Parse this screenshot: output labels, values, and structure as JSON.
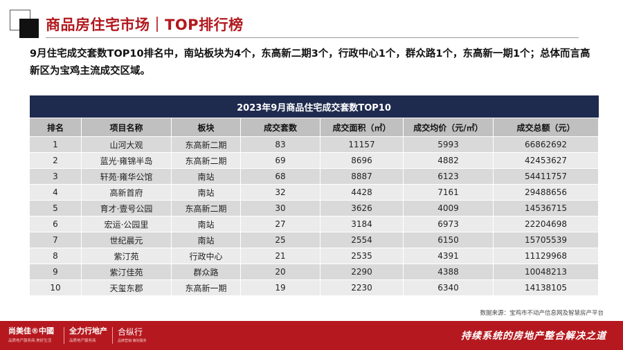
{
  "title": "商品房住宅市场｜TOP排行榜",
  "summary": "9月住宅成交套数TOP10排名中，南站板块为4个，东高新二期3个，行政中心1个，群众路1个，东高新一期1个；总体而言高新区为宝鸡主流成交区域。",
  "table": {
    "caption": "2023年9月商品住宅成交套数TOP10",
    "headers": [
      "排名",
      "项目名称",
      "板块",
      "成交套数",
      "成交面积（㎡）",
      "成交均价（元/㎡）",
      "成交总额（元）"
    ],
    "rows": [
      [
        "1",
        "山河大观",
        "东高新二期",
        "83",
        "11157",
        "5993",
        "66862692"
      ],
      [
        "2",
        "蓝光·雍锦半岛",
        "东高新二期",
        "69",
        "8696",
        "4882",
        "42453627"
      ],
      [
        "3",
        "轩苑·雍华公馆",
        "南站",
        "68",
        "8887",
        "6123",
        "54411757"
      ],
      [
        "4",
        "高新首府",
        "南站",
        "32",
        "4428",
        "7161",
        "29488656"
      ],
      [
        "5",
        "育才·壹号公园",
        "东高新二期",
        "30",
        "3626",
        "4009",
        "14536715"
      ],
      [
        "6",
        "宏运·公园里",
        "南站",
        "27",
        "3184",
        "6973",
        "22204698"
      ],
      [
        "7",
        "世纪晨元",
        "南站",
        "25",
        "2554",
        "6150",
        "15705539"
      ],
      [
        "8",
        "紫汀苑",
        "行政中心",
        "21",
        "2535",
        "4391",
        "11129968"
      ],
      [
        "9",
        "紫汀佳苑",
        "群众路",
        "20",
        "2290",
        "4388",
        "10048213"
      ],
      [
        "10",
        "天玺东郡",
        "东高新一期",
        "19",
        "2230",
        "6340",
        "14138105"
      ]
    ]
  },
  "source": "数据来源：宝鸡市不动产信息网及智慧房产平台",
  "footer": {
    "logo1": "尚美佳®中國",
    "logo1_sub": "品质地产服务商·美好生活",
    "logo2": "全力行地产",
    "logo2_sub": "品质地产服务商",
    "logo3": "合纵行",
    "logo3_sub": "品牌营销·策划服务",
    "slogan": "持续系统的房地产整合解决之道"
  },
  "colors": {
    "brand_red": "#b5191f",
    "table_header_navy": "#1e2b4e"
  }
}
